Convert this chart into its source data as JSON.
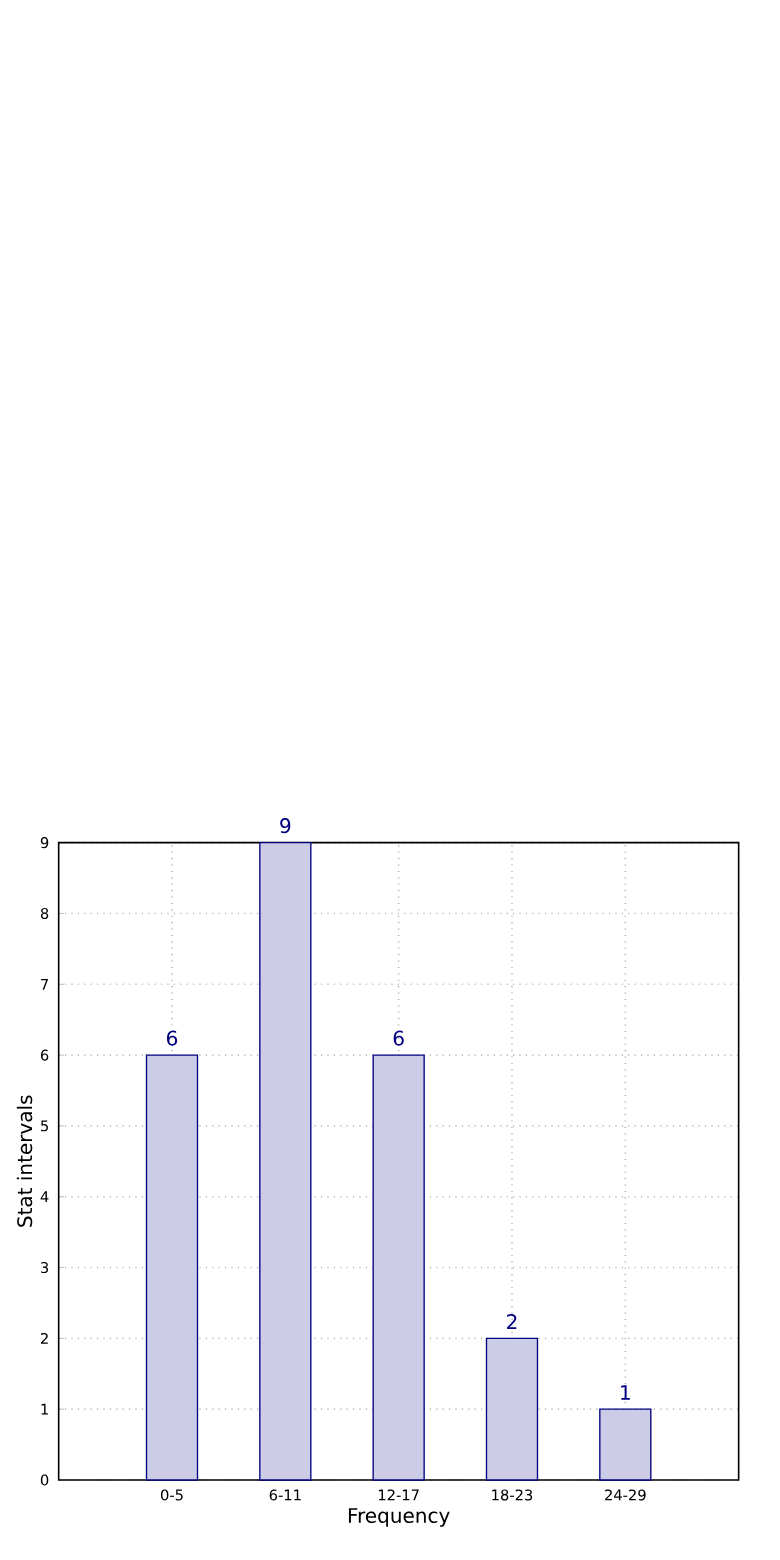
{
  "chart_data": {
    "type": "bar",
    "xlabel": "Frequency",
    "ylabel": "Stat intervals",
    "categories": [
      "0-5",
      "6-11",
      "12-17",
      "18-23",
      "24-29"
    ],
    "values": [
      6,
      9,
      6,
      2,
      1
    ],
    "color": "#ccccE6",
    "ylim": [
      0,
      9
    ],
    "yticks": [
      0,
      1,
      2,
      3,
      4,
      5,
      6,
      7,
      8,
      9
    ],
    "grid": true,
    "data_labels": true
  }
}
